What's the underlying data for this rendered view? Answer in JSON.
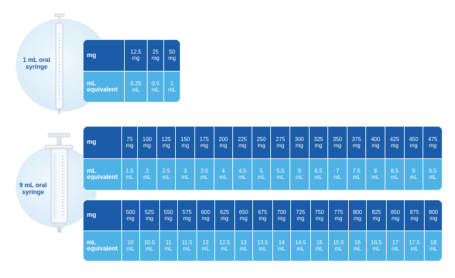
{
  "syringe_small": {
    "label": "1 mL oral\nsyringe"
  },
  "syringe_large": {
    "label": "9 mL oral\nsyringe"
  },
  "row_labels": {
    "mg": "mg",
    "ml": "mL\nequivalent"
  },
  "table1": {
    "mg": [
      "12.5\nmg",
      "25\nmg",
      "50\nmg"
    ],
    "ml": [
      "0.25\nmL",
      "0.5\nmL",
      "1\nmL"
    ]
  },
  "table2": {
    "mg": [
      "75\nmg",
      "100\nmg",
      "125\nmg",
      "150\nmg",
      "175\nmg",
      "200\nmg",
      "225\nmg",
      "250\nmg",
      "275\nmg",
      "300\nmg",
      "325\nmg",
      "350\nmg",
      "375\nmg",
      "400\nmg",
      "425\nmg",
      "450\nmg",
      "475\nmg"
    ],
    "ml": [
      "1.5\nmL",
      "2\nmL",
      "2.5\nmL",
      "3\nmL",
      "3.5\nmL",
      "4\nmL",
      "4.5\nmL",
      "5\nmL",
      "5.5\nmL",
      "6\nmL",
      "6.5\nmL",
      "7\nmL",
      "7.5\nmL",
      "8\nmL",
      "8.5\nmL",
      "9\nmL",
      "9.5\nmL"
    ]
  },
  "table3": {
    "mg": [
      "500\nmg",
      "525\nmg",
      "550\nmg",
      "575\nmg",
      "600\nmg",
      "625\nmg",
      "650\nmg",
      "675\nmg",
      "700\nmg",
      "725\nmg",
      "750\nmg",
      "775\nmg",
      "800\nmg",
      "825\nmg",
      "850\nmg",
      "875\nmg",
      "900\nmg"
    ],
    "ml": [
      "10\nmL",
      "10.5\nmL",
      "11\nmL",
      "11.5\nmL",
      "12\nmL",
      "12.5\nmL",
      "13\nmL",
      "13.5\nmL",
      "14\nmL",
      "14.5\nmL",
      "15\nmL",
      "15.5\nmL",
      "16\nmL",
      "16.5\nmL",
      "17\nmL",
      "17.5\nmL",
      "18\nmL"
    ]
  },
  "colors": {
    "mg_row": "#1b5ca8",
    "ml_row": "#4eb3e4",
    "label_text": "#1e5aa3",
    "circle": "#dcedf8"
  }
}
